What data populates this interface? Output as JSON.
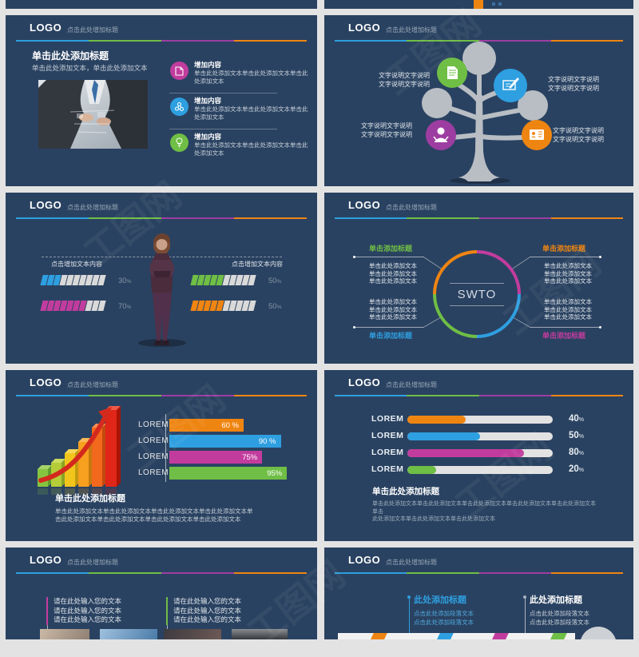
{
  "watermark": "工图网",
  "theme": {
    "navy": "#2a4261",
    "blue": "#2e9fe0",
    "green": "#6fbe45",
    "purple": "#9d3da2",
    "orange": "#ef8511",
    "magenta": "#c23c9e",
    "seg_empty": "#d9d9d9",
    "white": "#ffffff"
  },
  "header": {
    "logo": "LOGO",
    "title": "点击此处增加标题"
  },
  "slides": {
    "intro": {
      "title": "单击此处添加标题",
      "subtitle": "单击此处添加文本，单击此处添加文本",
      "items": [
        {
          "icon": "document-icon",
          "color_key": "magenta",
          "title": "增加内容",
          "text": "单击此处添加文本单击此处添加文本单击此处添加文本"
        },
        {
          "icon": "molecule-icon",
          "color_key": "blue",
          "title": "增加内容",
          "text": "单击此处添加文本单击此处添加文本单击此处添加文本"
        },
        {
          "icon": "bulb-icon",
          "color_key": "green",
          "title": "增加内容",
          "text": "单击此处添加文本单击此处添加文本单击此处添加文本"
        }
      ]
    },
    "tree": {
      "labels": {
        "tl": "文字说明文字说明\n文字说明文字说明",
        "tr": "文字说明文字说明\n文字说明文字说明",
        "bl": "文字说明文字说明\n文字说明文字说明",
        "br": "文字说明文字说明\n文字说明文字说明"
      }
    },
    "stats_people": {
      "left_caption": "点击增加文本内容",
      "right_caption": "点击增加文本内容",
      "bars": [
        {
          "color_key": "blue",
          "filled": 3,
          "total": 10,
          "value": "30",
          "suffix": "%"
        },
        {
          "color_key": "magenta",
          "filled": 7,
          "total": 10,
          "value": "70",
          "suffix": "%"
        },
        {
          "color_key": "green",
          "filled": 5,
          "total": 10,
          "value": "50",
          "suffix": "%"
        },
        {
          "color_key": "orange",
          "filled": 5,
          "total": 10,
          "value": "50",
          "suffix": "%"
        }
      ]
    },
    "swto": {
      "center": "SWTO",
      "quadrants": [
        {
          "pos": "tl",
          "color_key": "green",
          "title": "单击添加标题",
          "text": "单击此处添加文本\n单击此处添加文本\n单击此处添加文本"
        },
        {
          "pos": "tr",
          "color_key": "orange",
          "title": "单击添加标题",
          "text": "单击此处添加文本\n单击此处添加文本\n单击此处添加文本"
        },
        {
          "pos": "bl",
          "color_key": "blue",
          "title": "单击添加标题",
          "text": "单击此处添加文本\n单击此处添加文本\n单击此处添加文本"
        },
        {
          "pos": "br",
          "color_key": "magenta",
          "title": "单击添加标题",
          "text": "单击此处添加文本\n单击此处添加文本\n单击此处添加文本"
        }
      ]
    },
    "chart3d": {
      "bars": [
        {
          "label": "LOREM",
          "value": 60,
          "text": "60 %",
          "color_key": "orange"
        },
        {
          "label": "LOREM",
          "value": 90,
          "text": "90 %",
          "color_key": "blue"
        },
        {
          "label": "LOREM",
          "value": 75,
          "text": "75%",
          "color_key": "magenta"
        },
        {
          "label": "LOREM",
          "value": 95,
          "text": "95%",
          "color_key": "green"
        }
      ],
      "title": "单击此处添加标题",
      "body": "单击此处添加文本单击此处添加文本单击此处添加文本单击此处添加文本单\n击此处添加文本单击此处添加文本单击此处添加文本单击此处添加文本"
    },
    "progress": {
      "bars": [
        {
          "label": "LOREM",
          "value": 40,
          "pct": "40",
          "suffix": "%",
          "color_key": "orange"
        },
        {
          "label": "LOREM",
          "value": 50,
          "pct": "50",
          "suffix": "%",
          "color_key": "blue"
        },
        {
          "label": "LOREM",
          "value": 80,
          "pct": "80",
          "suffix": "%",
          "color_key": "magenta"
        },
        {
          "label": "LOREM",
          "value": 20,
          "pct": "20",
          "suffix": "%",
          "color_key": "green"
        }
      ],
      "title": "单击此处添加标题",
      "body": "单击此处添加文本单击此处添加文本单击此处添加文本单击此处添加文本单击此处添加文本单击\n此处添加文本单击此处添加文本单击此处添加文本"
    },
    "inputs": {
      "blocks": [
        {
          "color_key": "magenta",
          "text": "请在此处输入您的文本\n请在此处输入您的文本\n请在此处输入您的文本"
        },
        {
          "color_key": "green",
          "text": "请在此处输入您的文本\n请在此处输入您的文本\n请在此处输入您的文本"
        }
      ]
    },
    "timeline": {
      "cols": [
        {
          "title": "此处添加标题",
          "color_key": "blue",
          "text": "点击此处添加段落文本\n点击此处添加段落文本"
        },
        {
          "title": "此处添加标题",
          "color_key": "white",
          "text": "点击此处添加段落文本\n点击此处添加段落文本"
        }
      ]
    }
  }
}
